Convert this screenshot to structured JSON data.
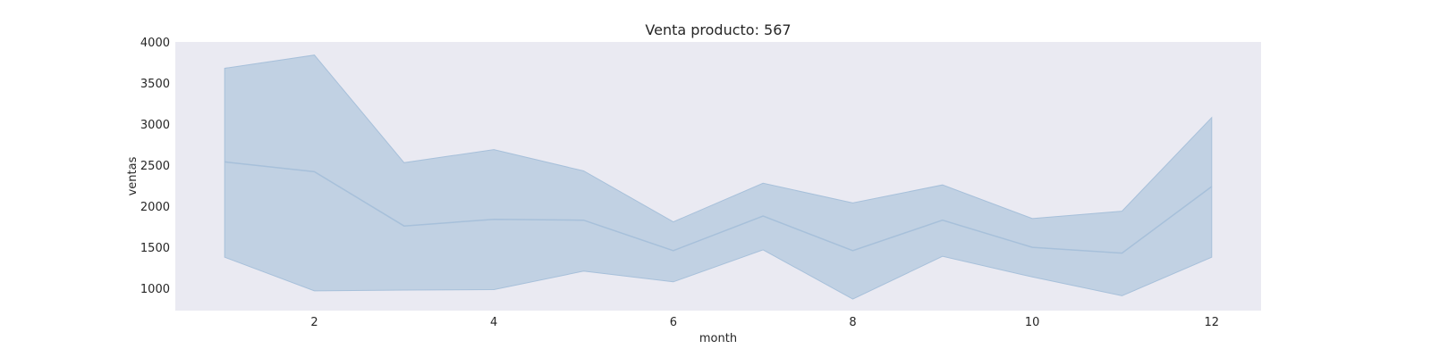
{
  "chart_data": {
    "type": "area",
    "title": "Venta producto: 567",
    "xlabel": "month",
    "ylabel": "ventas",
    "x": [
      1,
      2,
      3,
      4,
      5,
      6,
      7,
      8,
      9,
      10,
      11,
      12
    ],
    "series": [
      {
        "mean": [
          2540,
          2420,
          1760,
          1840,
          1830,
          1460,
          1880,
          1460,
          1830,
          1500,
          1430,
          2240
        ],
        "lower": [
          1380,
          970,
          980,
          985,
          1210,
          1080,
          1470,
          870,
          1390,
          1140,
          910,
          1380
        ],
        "upper": [
          3680,
          3840,
          2530,
          2690,
          2430,
          1810,
          2280,
          2040,
          2260,
          1850,
          1940,
          3080
        ]
      }
    ],
    "xlim": [
      0.45,
      12.55
    ],
    "ylim": [
      730,
      4000
    ],
    "xticks": [
      2,
      4,
      6,
      8,
      10,
      12
    ],
    "yticks": [
      1000,
      1500,
      2000,
      2500,
      3000,
      3500,
      4000
    ],
    "grid": false,
    "legend": "none",
    "colors": {
      "plot_background": "#eaeaf2",
      "band_fill": "#c1d1e3",
      "line": "#a7c0da"
    }
  }
}
